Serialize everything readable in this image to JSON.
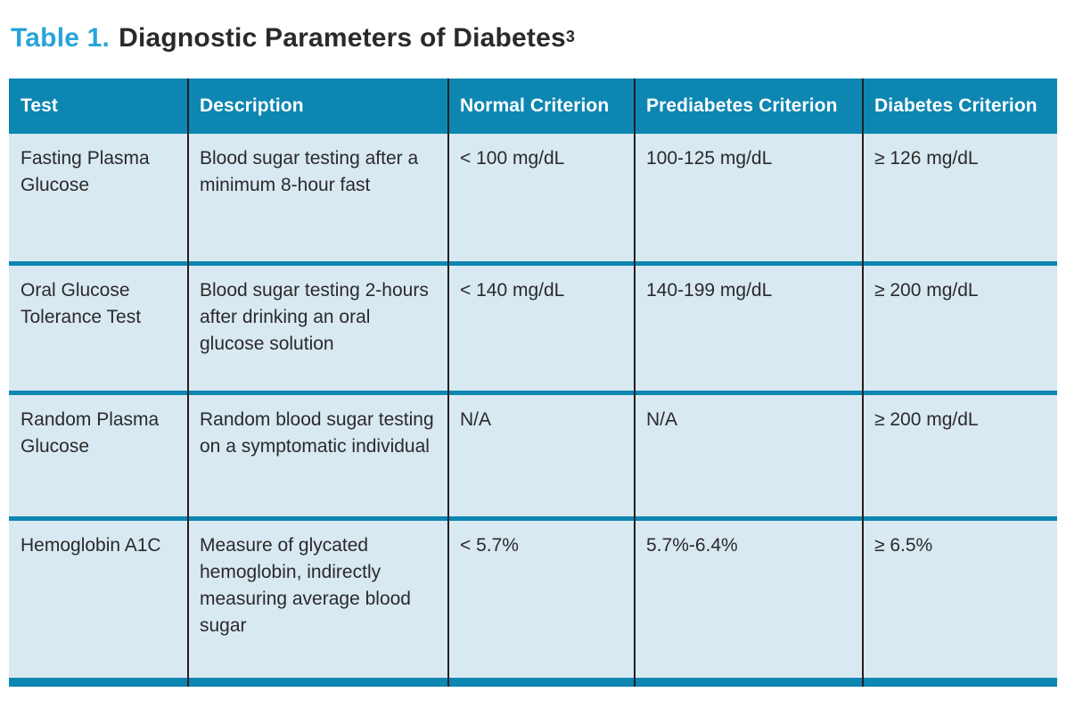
{
  "title": {
    "label": "Table 1.",
    "text": "Diagnostic Parameters of Diabetes",
    "superscript": "3"
  },
  "colors": {
    "header_teal": "#0d86b2",
    "cell_background": "#d9e9f1",
    "column_line": "#231f20",
    "title_blue": "#29a4d8"
  },
  "table": {
    "columns": [
      "Test",
      "Description",
      "Normal Criterion",
      "Prediabetes Criterion",
      "Diabetes Criterion"
    ],
    "rows": [
      [
        "Fasting Plasma Glucose",
        "Blood sugar testing after a minimum 8-hour fast",
        "< 100 mg/dL",
        "100-125 mg/dL",
        "≥ 126 mg/dL"
      ],
      [
        "Oral Glucose Tolerance Test",
        "Blood sugar testing 2-hours after drinking an oral glucose solution",
        "< 140 mg/dL",
        "140-199 mg/dL",
        "≥ 200 mg/dL"
      ],
      [
        "Random Plasma Glucose",
        "Random blood sugar testing on a symptomatic individual",
        "N/A",
        "N/A",
        "≥ 200 mg/dL"
      ],
      [
        "Hemoglobin A1C",
        "Measure of glycated hemoglobin, indirectly measuring average blood sugar",
        "< 5.7%",
        "5.7%-6.4%",
        "≥ 6.5%"
      ]
    ]
  }
}
